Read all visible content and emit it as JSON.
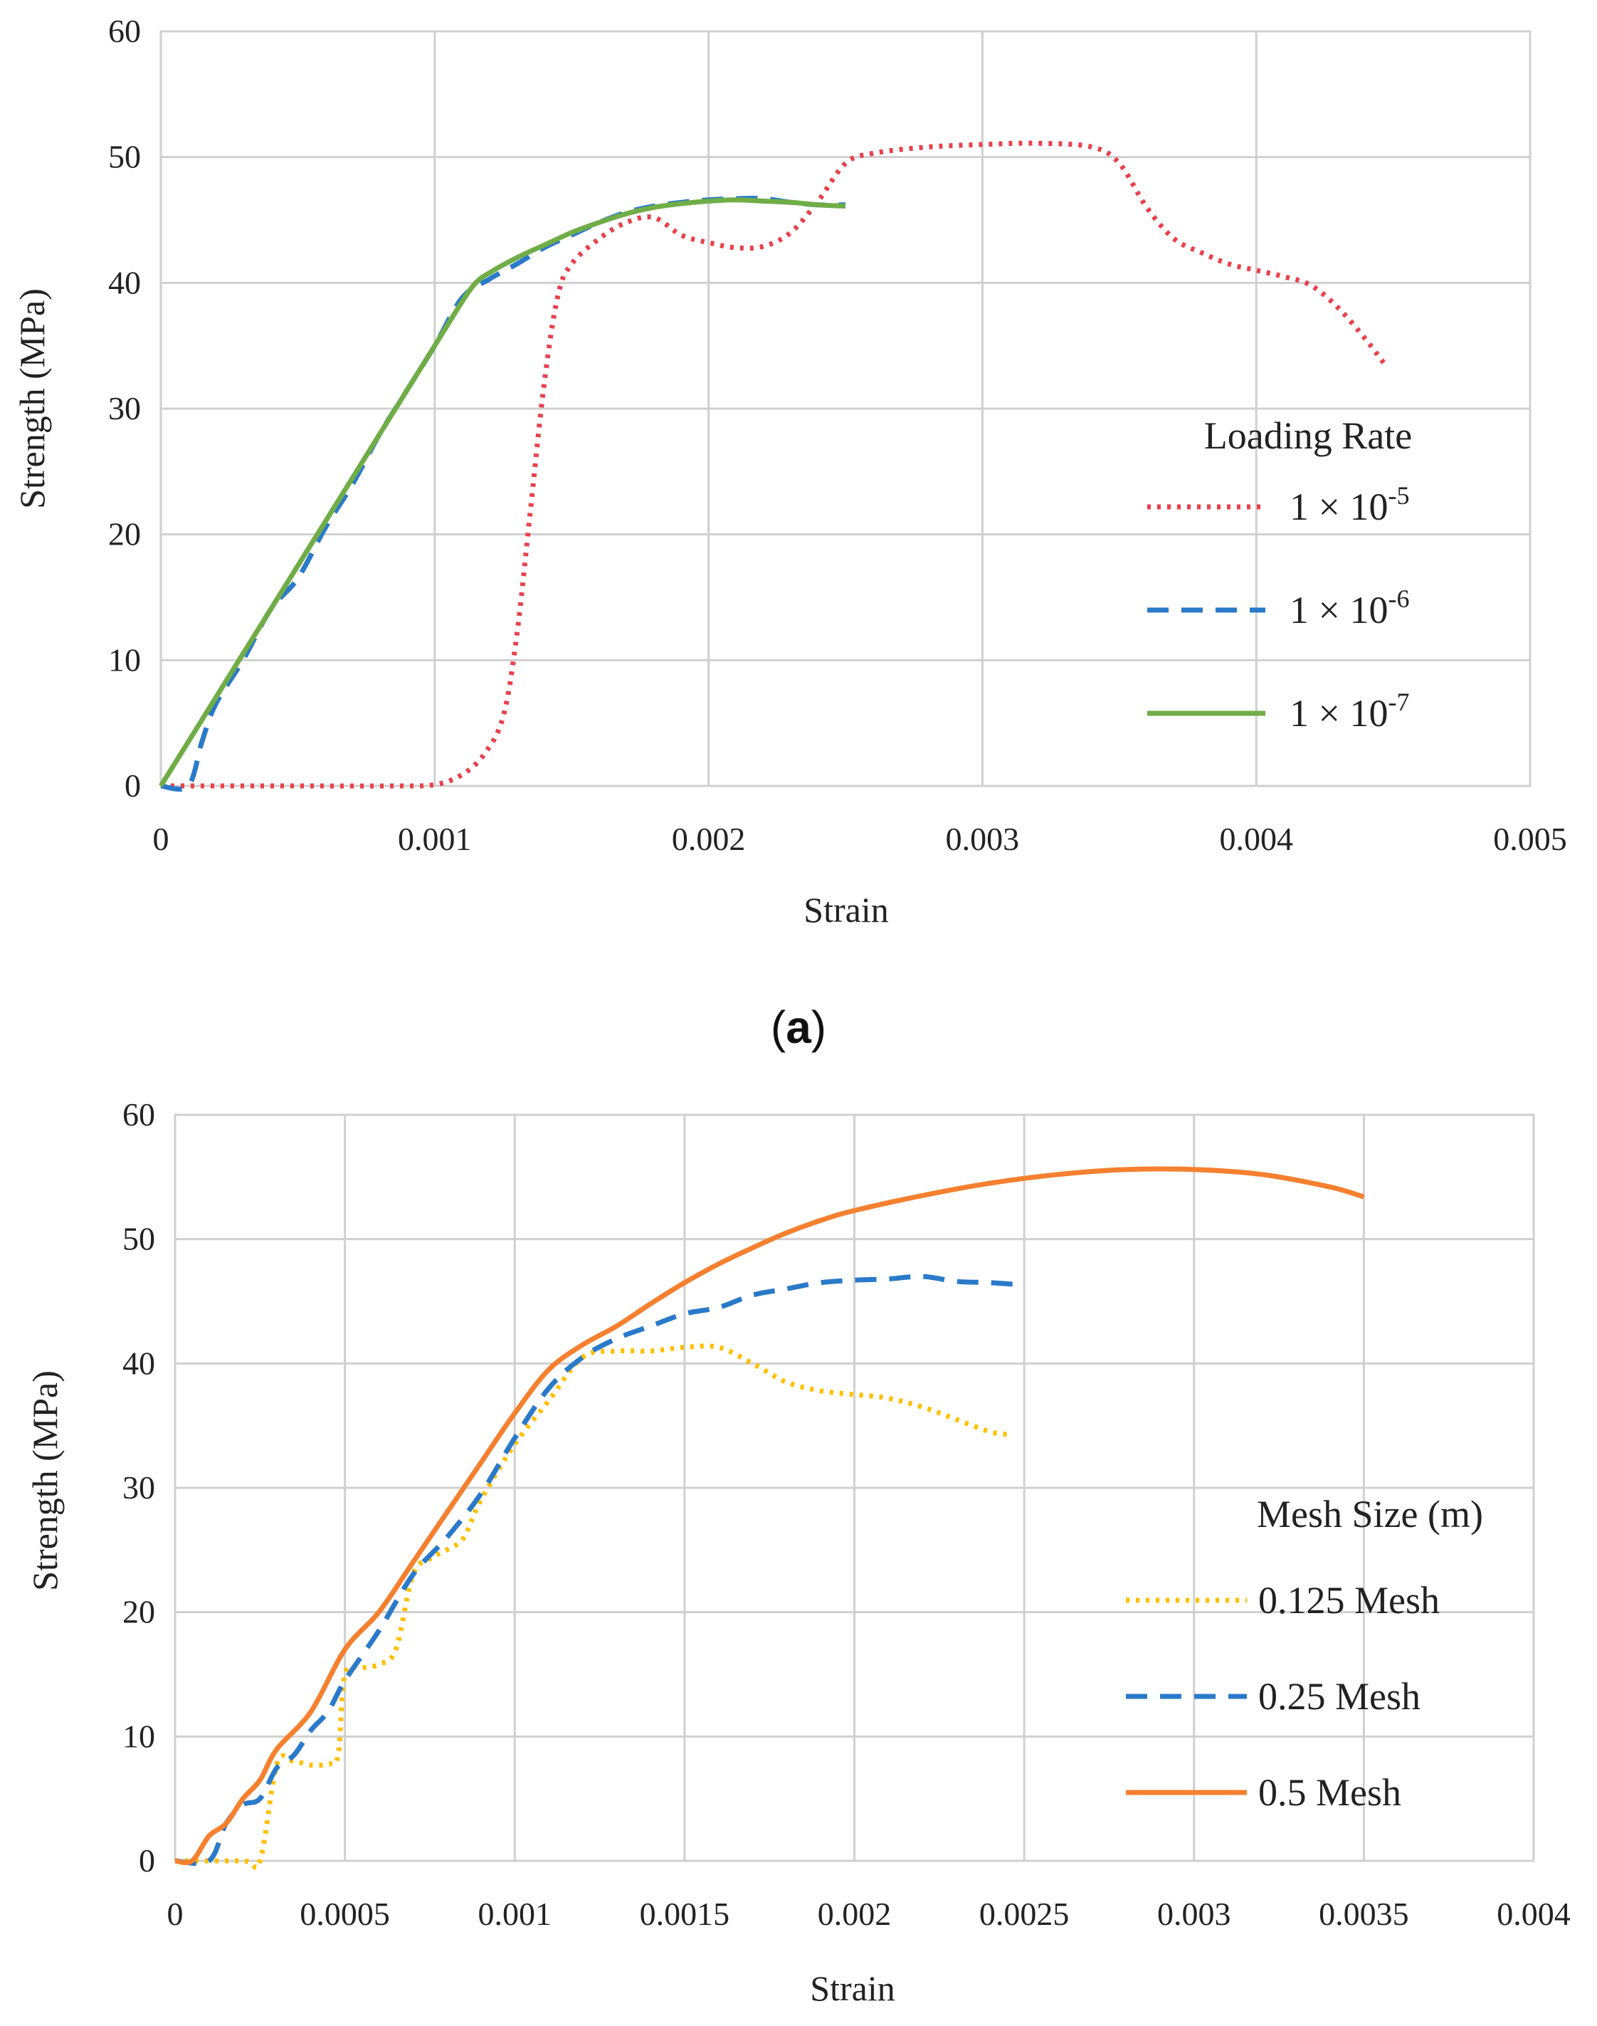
{
  "panel_a_label": {
    "open": "(",
    "letter": "a",
    "close": ")"
  },
  "chart_data": [
    {
      "type": "line",
      "title": "",
      "xlabel": "Strain",
      "ylabel": "Strength (MPa)",
      "xlim": [
        0,
        0.005
      ],
      "ylim": [
        0,
        60
      ],
      "xticks": [
        0,
        0.001,
        0.002,
        0.003,
        0.004,
        0.005
      ],
      "xtick_labels": [
        "0",
        "0.001",
        "0.002",
        "0.003",
        "0.004",
        "0.005"
      ],
      "yticks": [
        0,
        10,
        20,
        30,
        40,
        50,
        60
      ],
      "ytick_labels": [
        "0",
        "10",
        "20",
        "30",
        "40",
        "50",
        "60"
      ],
      "grid": true,
      "legend": {
        "title": "Loading Rate",
        "position": "right"
      },
      "series": [
        {
          "name": "1 × 10-5",
          "label_base": "1 × 10",
          "label_exp": "-5",
          "color": "#e8414b",
          "style": "dotted",
          "points": [
            [
              0,
              0
            ],
            [
              0.0002,
              0
            ],
            [
              0.0005,
              0
            ],
            [
              0.00085,
              0
            ],
            [
              0.001,
              0.1
            ],
            [
              0.0011,
              0.9
            ],
            [
              0.00118,
              2.5
            ],
            [
              0.00125,
              5.5
            ],
            [
              0.0013,
              12
            ],
            [
              0.00135,
              22
            ],
            [
              0.0014,
              32
            ],
            [
              0.00145,
              39
            ],
            [
              0.0015,
              41.5
            ],
            [
              0.0016,
              43.5
            ],
            [
              0.0017,
              44.8
            ],
            [
              0.0018,
              45.2
            ],
            [
              0.0019,
              43.8
            ],
            [
              0.002,
              43.2
            ],
            [
              0.0021,
              42.8
            ],
            [
              0.0022,
              42.9
            ],
            [
              0.0023,
              44
            ],
            [
              0.0024,
              46.5
            ],
            [
              0.0025,
              49.5
            ],
            [
              0.0026,
              50.3
            ],
            [
              0.0028,
              50.8
            ],
            [
              0.003,
              51
            ],
            [
              0.0032,
              51.1
            ],
            [
              0.0034,
              50.8
            ],
            [
              0.0035,
              49.5
            ],
            [
              0.0036,
              46
            ],
            [
              0.0037,
              43.5
            ],
            [
              0.0038,
              42.4
            ],
            [
              0.0039,
              41.5
            ],
            [
              0.004,
              41
            ],
            [
              0.0041,
              40.5
            ],
            [
              0.0042,
              39.8
            ],
            [
              0.0043,
              38
            ],
            [
              0.0044,
              35.5
            ],
            [
              0.00447,
              33.5
            ]
          ]
        },
        {
          "name": "1 × 10-6",
          "label_base": "1 × 10",
          "label_exp": "-6",
          "color": "#2a7ac9",
          "style": "dashed",
          "points": [
            [
              0,
              0
            ],
            [
              0.0001,
              0
            ],
            [
              0.00015,
              3.5
            ],
            [
              0.0002,
              6.5
            ],
            [
              0.0003,
              10
            ],
            [
              0.0004,
              14
            ],
            [
              0.0005,
              16.5
            ],
            [
              0.0006,
              20.5
            ],
            [
              0.0007,
              24
            ],
            [
              0.0008,
              28
            ],
            [
              0.0009,
              31.5
            ],
            [
              0.001,
              35
            ],
            [
              0.0011,
              38.8
            ],
            [
              0.0012,
              40.3
            ],
            [
              0.0013,
              41.5
            ],
            [
              0.0014,
              42.8
            ],
            [
              0.0015,
              43.8
            ],
            [
              0.0016,
              44.8
            ],
            [
              0.0017,
              45.6
            ],
            [
              0.0018,
              46.1
            ],
            [
              0.0019,
              46.4
            ],
            [
              0.002,
              46.6
            ],
            [
              0.0021,
              46.7
            ],
            [
              0.0022,
              46.7
            ],
            [
              0.0023,
              46.4
            ],
            [
              0.0024,
              46.2
            ],
            [
              0.0025,
              46.2
            ]
          ]
        },
        {
          "name": "1 × 10-7",
          "label_base": "1 × 10",
          "label_exp": "-7",
          "color": "#70ad47",
          "style": "solid",
          "points": [
            [
              0,
              0
            ],
            [
              0.0001,
              3.5
            ],
            [
              0.0002,
              7
            ],
            [
              0.0003,
              10.5
            ],
            [
              0.0004,
              14
            ],
            [
              0.0005,
              17.5
            ],
            [
              0.0006,
              21
            ],
            [
              0.0007,
              24.5
            ],
            [
              0.0008,
              28
            ],
            [
              0.0009,
              31.5
            ],
            [
              0.001,
              35
            ],
            [
              0.0011,
              38.5
            ],
            [
              0.00115,
              40
            ],
            [
              0.0012,
              40.8
            ],
            [
              0.0013,
              42
            ],
            [
              0.0014,
              43
            ],
            [
              0.0015,
              44
            ],
            [
              0.0016,
              44.8
            ],
            [
              0.0017,
              45.5
            ],
            [
              0.0018,
              46
            ],
            [
              0.0019,
              46.3
            ],
            [
              0.002,
              46.5
            ],
            [
              0.0021,
              46.6
            ],
            [
              0.0022,
              46.5
            ],
            [
              0.0023,
              46.4
            ],
            [
              0.0024,
              46.2
            ],
            [
              0.0025,
              46.1
            ]
          ]
        }
      ]
    },
    {
      "type": "line",
      "title": "",
      "xlabel": "Strain",
      "ylabel": "Strength (MPa)",
      "xlim": [
        0,
        0.004
      ],
      "ylim": [
        0,
        60
      ],
      "xticks": [
        0,
        0.0005,
        0.001,
        0.0015,
        0.002,
        0.0025,
        0.003,
        0.0035,
        0.004
      ],
      "xtick_labels": [
        "0",
        "0.0005",
        "0.001",
        "0.0015",
        "0.002",
        "0.0025",
        "0.003",
        "0.0035",
        "0.004"
      ],
      "yticks": [
        0,
        10,
        20,
        30,
        40,
        50,
        60
      ],
      "ytick_labels": [
        "0",
        "10",
        "20",
        "30",
        "40",
        "50",
        "60"
      ],
      "grid": true,
      "legend": {
        "title": "Mesh Size (m)",
        "position": "right"
      },
      "series": [
        {
          "name": "0.125 Mesh",
          "color": "#ffc000",
          "style": "dotted",
          "points": [
            [
              0,
              0
            ],
            [
              0.0002,
              0
            ],
            [
              0.00025,
              0
            ],
            [
              0.0003,
              7.8
            ],
            [
              0.00035,
              8
            ],
            [
              0.0004,
              7.7
            ],
            [
              0.00045,
              7.8
            ],
            [
              0.00048,
              8.5
            ],
            [
              0.0005,
              15
            ],
            [
              0.00055,
              15.5
            ],
            [
              0.0006,
              15.8
            ],
            [
              0.00065,
              17
            ],
            [
              0.0007,
              23
            ],
            [
              0.00075,
              24.3
            ],
            [
              0.0008,
              25
            ],
            [
              0.00085,
              26
            ],
            [
              0.0009,
              29
            ],
            [
              0.001,
              33.5
            ],
            [
              0.0011,
              37
            ],
            [
              0.0012,
              40.5
            ],
            [
              0.0013,
              41
            ],
            [
              0.0014,
              41
            ],
            [
              0.0015,
              41.3
            ],
            [
              0.0016,
              41.3
            ],
            [
              0.0017,
              40
            ],
            [
              0.0018,
              38.5
            ],
            [
              0.0019,
              37.8
            ],
            [
              0.002,
              37.5
            ],
            [
              0.0021,
              37.2
            ],
            [
              0.0022,
              36.5
            ],
            [
              0.0023,
              35.5
            ],
            [
              0.0024,
              34.5
            ],
            [
              0.00245,
              34.3
            ]
          ]
        },
        {
          "name": "0.25 Mesh",
          "color": "#2a7ac9",
          "style": "dashed",
          "points": [
            [
              0,
              0
            ],
            [
              0.0001,
              0
            ],
            [
              0.00015,
              3
            ],
            [
              0.0002,
              4.5
            ],
            [
              0.00025,
              5
            ],
            [
              0.0003,
              7.5
            ],
            [
              0.00035,
              8.5
            ],
            [
              0.0004,
              10.5
            ],
            [
              0.00045,
              12
            ],
            [
              0.0005,
              14.5
            ],
            [
              0.0006,
              18.5
            ],
            [
              0.0007,
              23
            ],
            [
              0.0008,
              26
            ],
            [
              0.0009,
              29.5
            ],
            [
              0.001,
              34
            ],
            [
              0.0011,
              38
            ],
            [
              0.0012,
              40.5
            ],
            [
              0.0013,
              42
            ],
            [
              0.0014,
              43
            ],
            [
              0.0015,
              44
            ],
            [
              0.0016,
              44.5
            ],
            [
              0.0017,
              45.5
            ],
            [
              0.0018,
              46
            ],
            [
              0.0019,
              46.5
            ],
            [
              0.002,
              46.7
            ],
            [
              0.0021,
              46.8
            ],
            [
              0.0022,
              47
            ],
            [
              0.0023,
              46.6
            ],
            [
              0.0024,
              46.5
            ],
            [
              0.0025,
              46.3
            ]
          ]
        },
        {
          "name": "0.5 Mesh",
          "color": "#f5802f",
          "style": "solid",
          "points": [
            [
              0,
              0
            ],
            [
              5e-05,
              0
            ],
            [
              0.0001,
              2
            ],
            [
              0.00015,
              3
            ],
            [
              0.0002,
              5
            ],
            [
              0.00025,
              6.5
            ],
            [
              0.0003,
              9
            ],
            [
              0.0004,
              12
            ],
            [
              0.0005,
              17
            ],
            [
              0.0006,
              20
            ],
            [
              0.0007,
              24
            ],
            [
              0.0008,
              28
            ],
            [
              0.0009,
              32
            ],
            [
              0.001,
              36
            ],
            [
              0.0011,
              39.5
            ],
            [
              0.0012,
              41.5
            ],
            [
              0.0013,
              43
            ],
            [
              0.0014,
              44.8
            ],
            [
              0.0015,
              46.5
            ],
            [
              0.0016,
              48
            ],
            [
              0.0017,
              49.3
            ],
            [
              0.0018,
              50.5
            ],
            [
              0.0019,
              51.5
            ],
            [
              0.002,
              52.3
            ],
            [
              0.0022,
              53.5
            ],
            [
              0.0024,
              54.5
            ],
            [
              0.0026,
              55.2
            ],
            [
              0.0028,
              55.6
            ],
            [
              0.003,
              55.6
            ],
            [
              0.0032,
              55.2
            ],
            [
              0.0034,
              54.2
            ],
            [
              0.0035,
              53.4
            ]
          ]
        }
      ]
    }
  ]
}
